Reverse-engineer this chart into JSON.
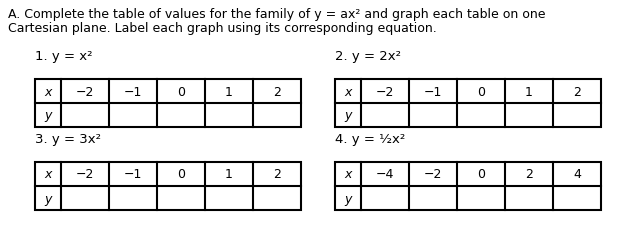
{
  "bg_color": "#ffffff",
  "header_line1": "A. Complete the table of values for the family of y = ax² and graph each table on one",
  "header_line2": "Cartesian plane. Label each graph using its corresponding equation.",
  "tables": [
    {
      "number": "1.",
      "eq_text": " y = x²",
      "eq_super": false,
      "x_vals": [
        "−2",
        "−1",
        "0",
        "1",
        "2"
      ],
      "col": 0,
      "row": 0
    },
    {
      "number": "2.",
      "eq_text": " y = 2x²",
      "eq_super": false,
      "x_vals": [
        "−2",
        "−1",
        "0",
        "1",
        "2"
      ],
      "col": 1,
      "row": 0
    },
    {
      "number": "3.",
      "eq_text": " y = 3x²",
      "eq_super": false,
      "x_vals": [
        "−2",
        "−1",
        "0",
        "1",
        "2"
      ],
      "col": 0,
      "row": 1
    },
    {
      "number": "4.",
      "eq_text": " y = ½x²",
      "eq_super": false,
      "x_vals": [
        "−4",
        "−2",
        "0",
        "2",
        "4"
      ],
      "col": 1,
      "row": 1
    }
  ],
  "font_size_header": 9.0,
  "font_size_label": 9.5,
  "font_size_table": 9.0
}
